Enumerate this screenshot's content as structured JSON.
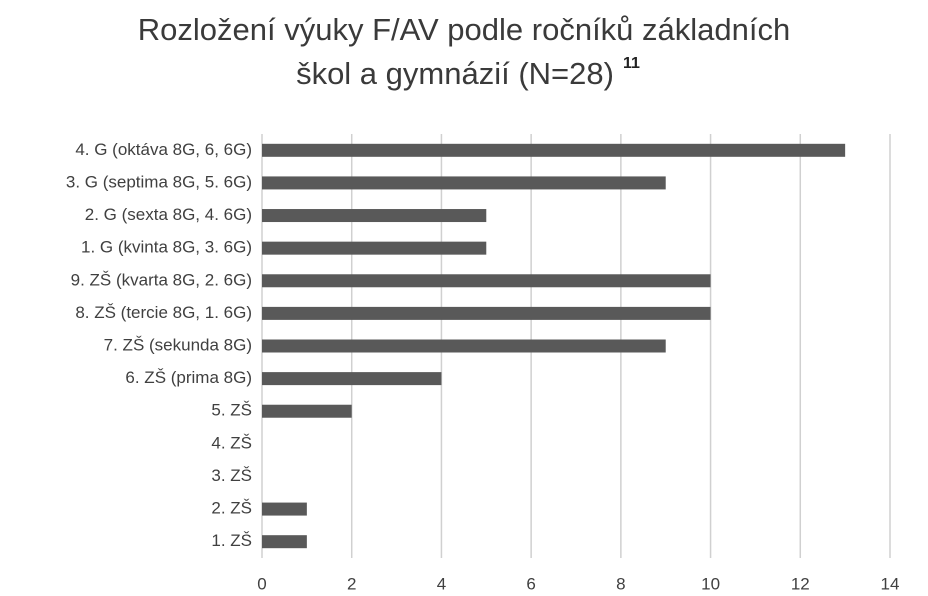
{
  "chart_data": {
    "type": "bar",
    "orientation": "horizontal",
    "title": [
      "Rozložení výuky F/AV podle ročníků základních",
      "škol a gymnázií (N=28)"
    ],
    "title_superscript": "11",
    "categories": [
      "4. G (oktáva 8G, 6, 6G)",
      "3. G (septima 8G, 5. 6G)",
      "2. G (sexta 8G, 4. 6G)",
      "1. G (kvinta 8G, 3. 6G)",
      "9. ZŠ (kvarta 8G, 2. 6G)",
      "8. ZŠ (tercie 8G, 1. 6G)",
      "7. ZŠ (sekunda 8G)",
      "6. ZŠ (prima 8G)",
      "5. ZŠ",
      "4. ZŠ",
      "3. ZŠ",
      "2. ZŠ",
      "1. ZŠ"
    ],
    "values": [
      13,
      9,
      5,
      5,
      10,
      10,
      9,
      4,
      2,
      0,
      0,
      1,
      1
    ],
    "color": "#595959",
    "xlim": [
      0,
      14
    ],
    "xticks": [
      0,
      2,
      4,
      6,
      8,
      10,
      12,
      14
    ],
    "grid": true
  }
}
